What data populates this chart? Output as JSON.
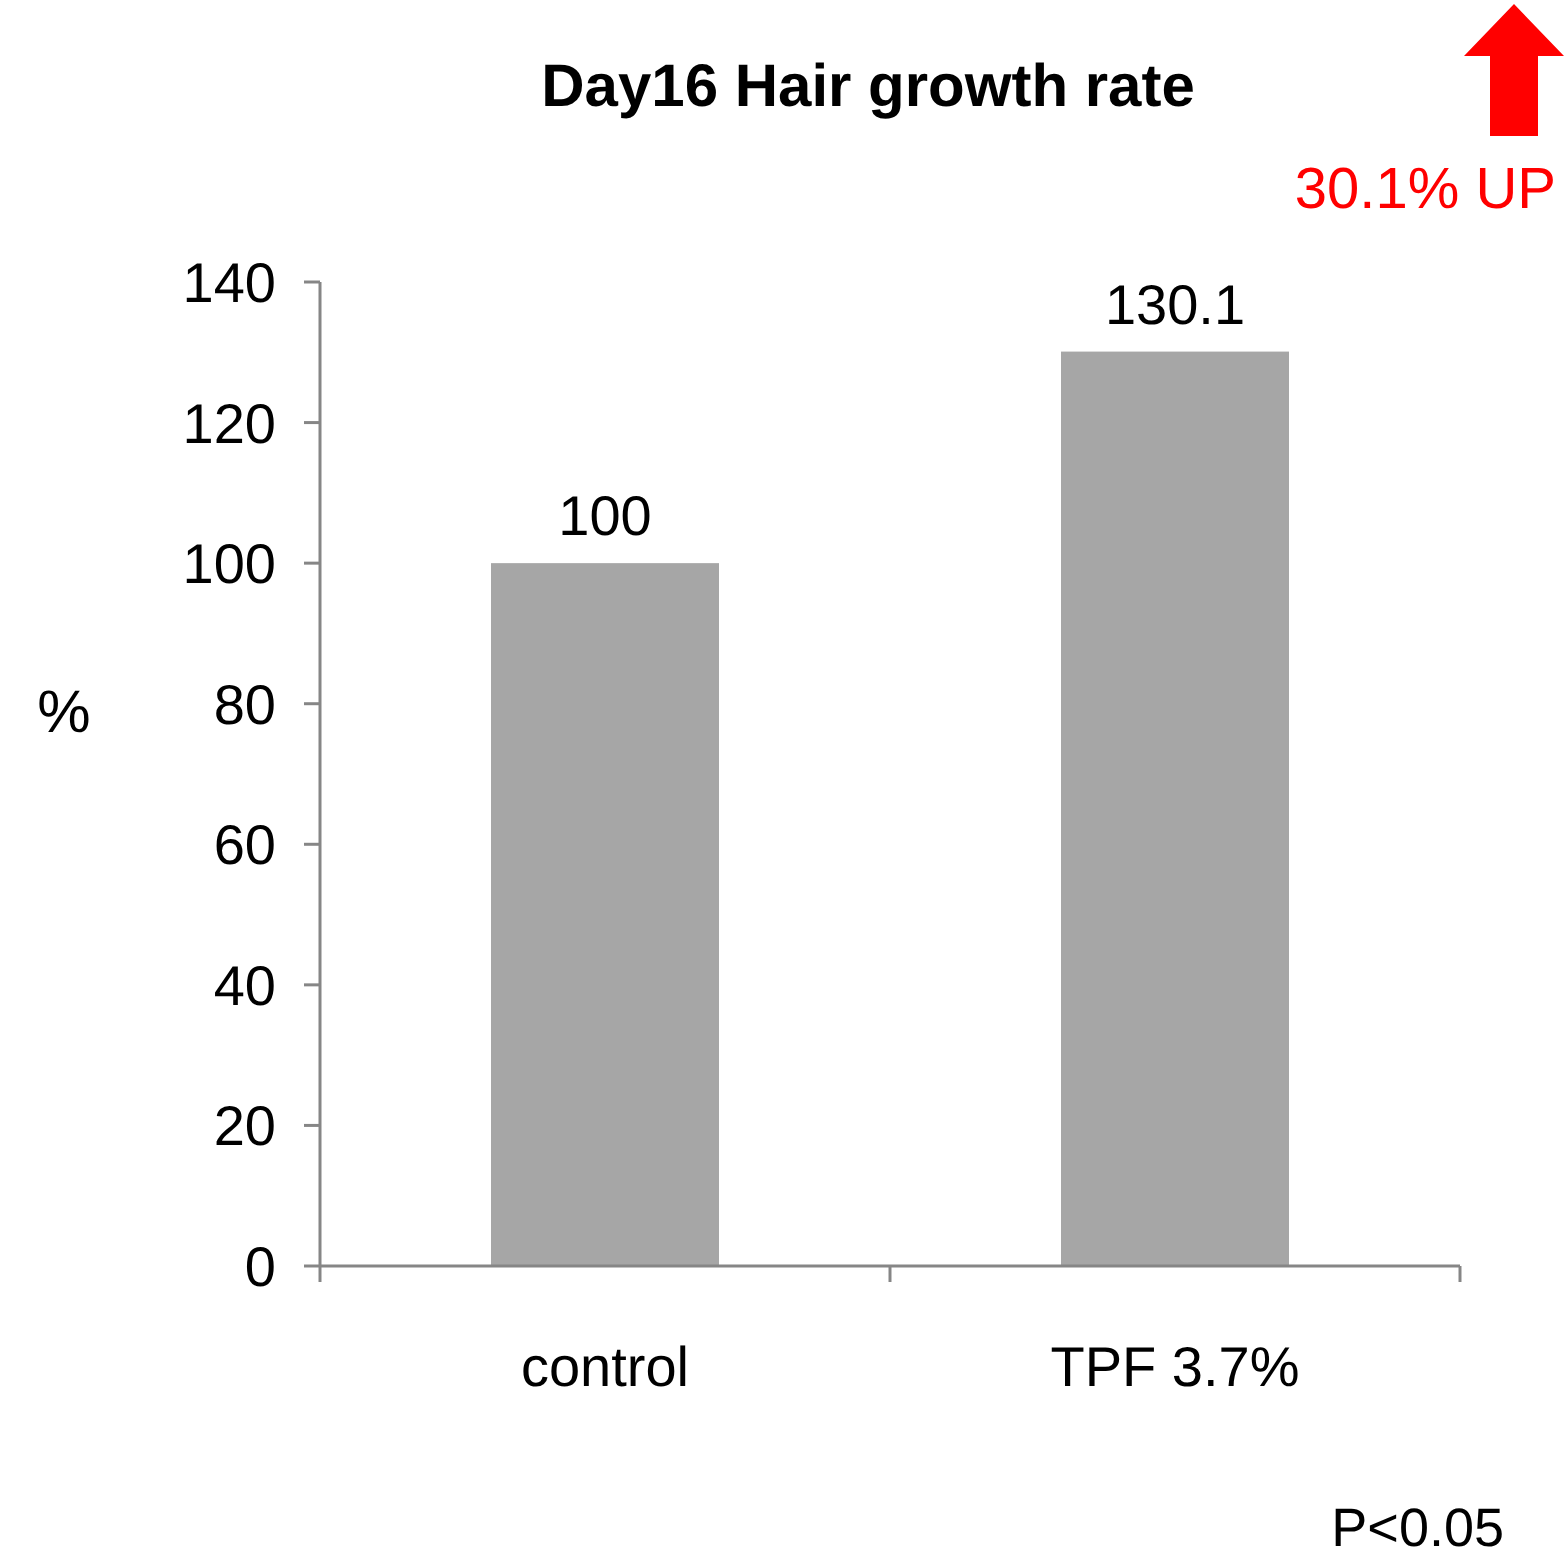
{
  "chart_data": {
    "type": "bar",
    "title": "Day16 Hair growth rate",
    "ylabel": "%",
    "categories": [
      "control",
      "TPF 3.7%"
    ],
    "values": [
      100,
      130.1
    ],
    "color": "#a6a6a6",
    "ylim": [
      0,
      140
    ],
    "yticks": [
      0,
      20,
      40,
      60,
      80,
      100,
      120,
      140
    ],
    "grid": false,
    "data_labels": true,
    "annotations": [
      "30.1% UP",
      "P<0.05"
    ]
  }
}
